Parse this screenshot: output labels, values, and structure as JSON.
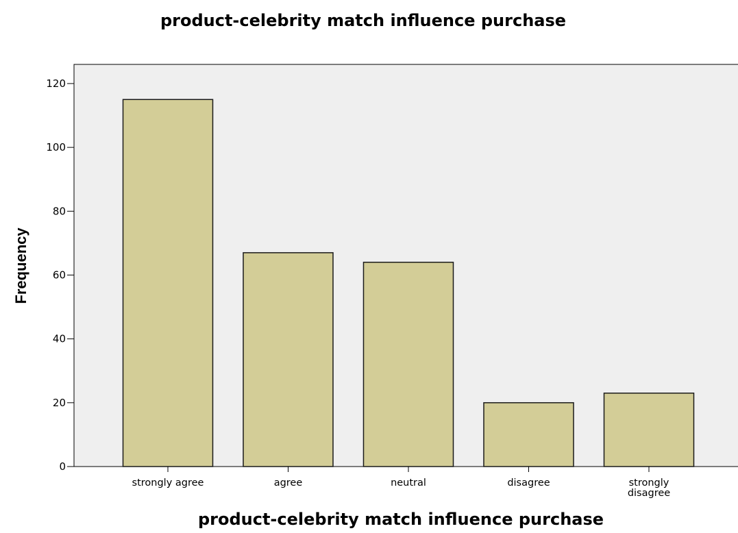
{
  "chart_data": {
    "type": "bar",
    "title": "product-celebrity match influence purchase",
    "xlabel": "product-celebrity match influence purchase",
    "ylabel": "Frequency",
    "categories": [
      "strongly agree",
      "agree",
      "neutral",
      "disagree",
      "strongly disagree"
    ],
    "category_lines": [
      [
        "strongly agree"
      ],
      [
        "agree"
      ],
      [
        "neutral"
      ],
      [
        "disagree"
      ],
      [
        "strongly",
        "disagree"
      ]
    ],
    "values": [
      115,
      67,
      64,
      20,
      23
    ],
    "ylim": [
      0,
      126
    ],
    "yticks": [
      0,
      20,
      40,
      60,
      80,
      100,
      120
    ],
    "grid": false,
    "legend": "none",
    "colors": {
      "bar_fill": "#d3cd97",
      "bar_stroke": "#1a1a1a",
      "plot_background": "#efefef",
      "axis": "#000000"
    }
  }
}
